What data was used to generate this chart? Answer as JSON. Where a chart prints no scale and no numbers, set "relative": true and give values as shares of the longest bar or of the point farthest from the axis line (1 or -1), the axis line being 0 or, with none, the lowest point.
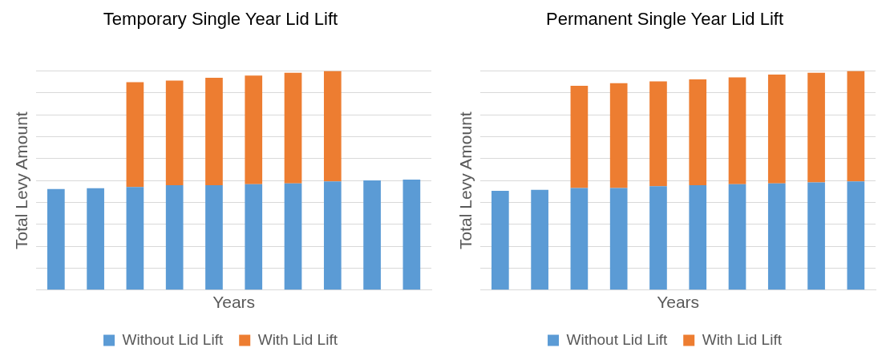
{
  "chart_data": [
    {
      "type": "bar",
      "title": "Temporary Single Year Lid Lift",
      "xlabel": "Years",
      "ylabel": "Total Levy Amount",
      "categories": [
        null,
        null,
        null,
        null,
        null,
        null,
        null,
        null,
        null,
        null
      ],
      "stacked": true,
      "relative": true,
      "grid": "y",
      "legend": "bottom",
      "series": [
        {
          "name": "Without Lid Lift",
          "color": "#5b9bd5",
          "values": [
            0.461,
            0.465,
            0.47,
            0.478,
            0.478,
            0.483,
            0.487,
            0.496,
            0.5,
            0.504
          ]
        },
        {
          "name": "With Lid Lift",
          "color": "#ed7d31",
          "values": [
            null,
            null,
            0.478,
            0.478,
            0.491,
            0.496,
            0.504,
            0.504,
            null,
            null
          ]
        }
      ]
    },
    {
      "type": "bar",
      "title": "Permanent Single Year Lid Lift",
      "xlabel": "Years",
      "ylabel": "Total Levy Amount",
      "categories": [
        null,
        null,
        null,
        null,
        null,
        null,
        null,
        null,
        null,
        null
      ],
      "stacked": true,
      "relative": true,
      "grid": "y",
      "legend": "bottom",
      "series": [
        {
          "name": "Without Lid Lift",
          "color": "#5b9bd5",
          "values": [
            0.453,
            0.457,
            0.466,
            0.466,
            0.474,
            0.478,
            0.483,
            0.487,
            0.491,
            0.496
          ]
        },
        {
          "name": "With Lid Lift",
          "color": "#ed7d31",
          "values": [
            null,
            null,
            0.466,
            0.478,
            0.478,
            0.483,
            0.487,
            0.496,
            0.5,
            0.504
          ]
        }
      ]
    }
  ]
}
